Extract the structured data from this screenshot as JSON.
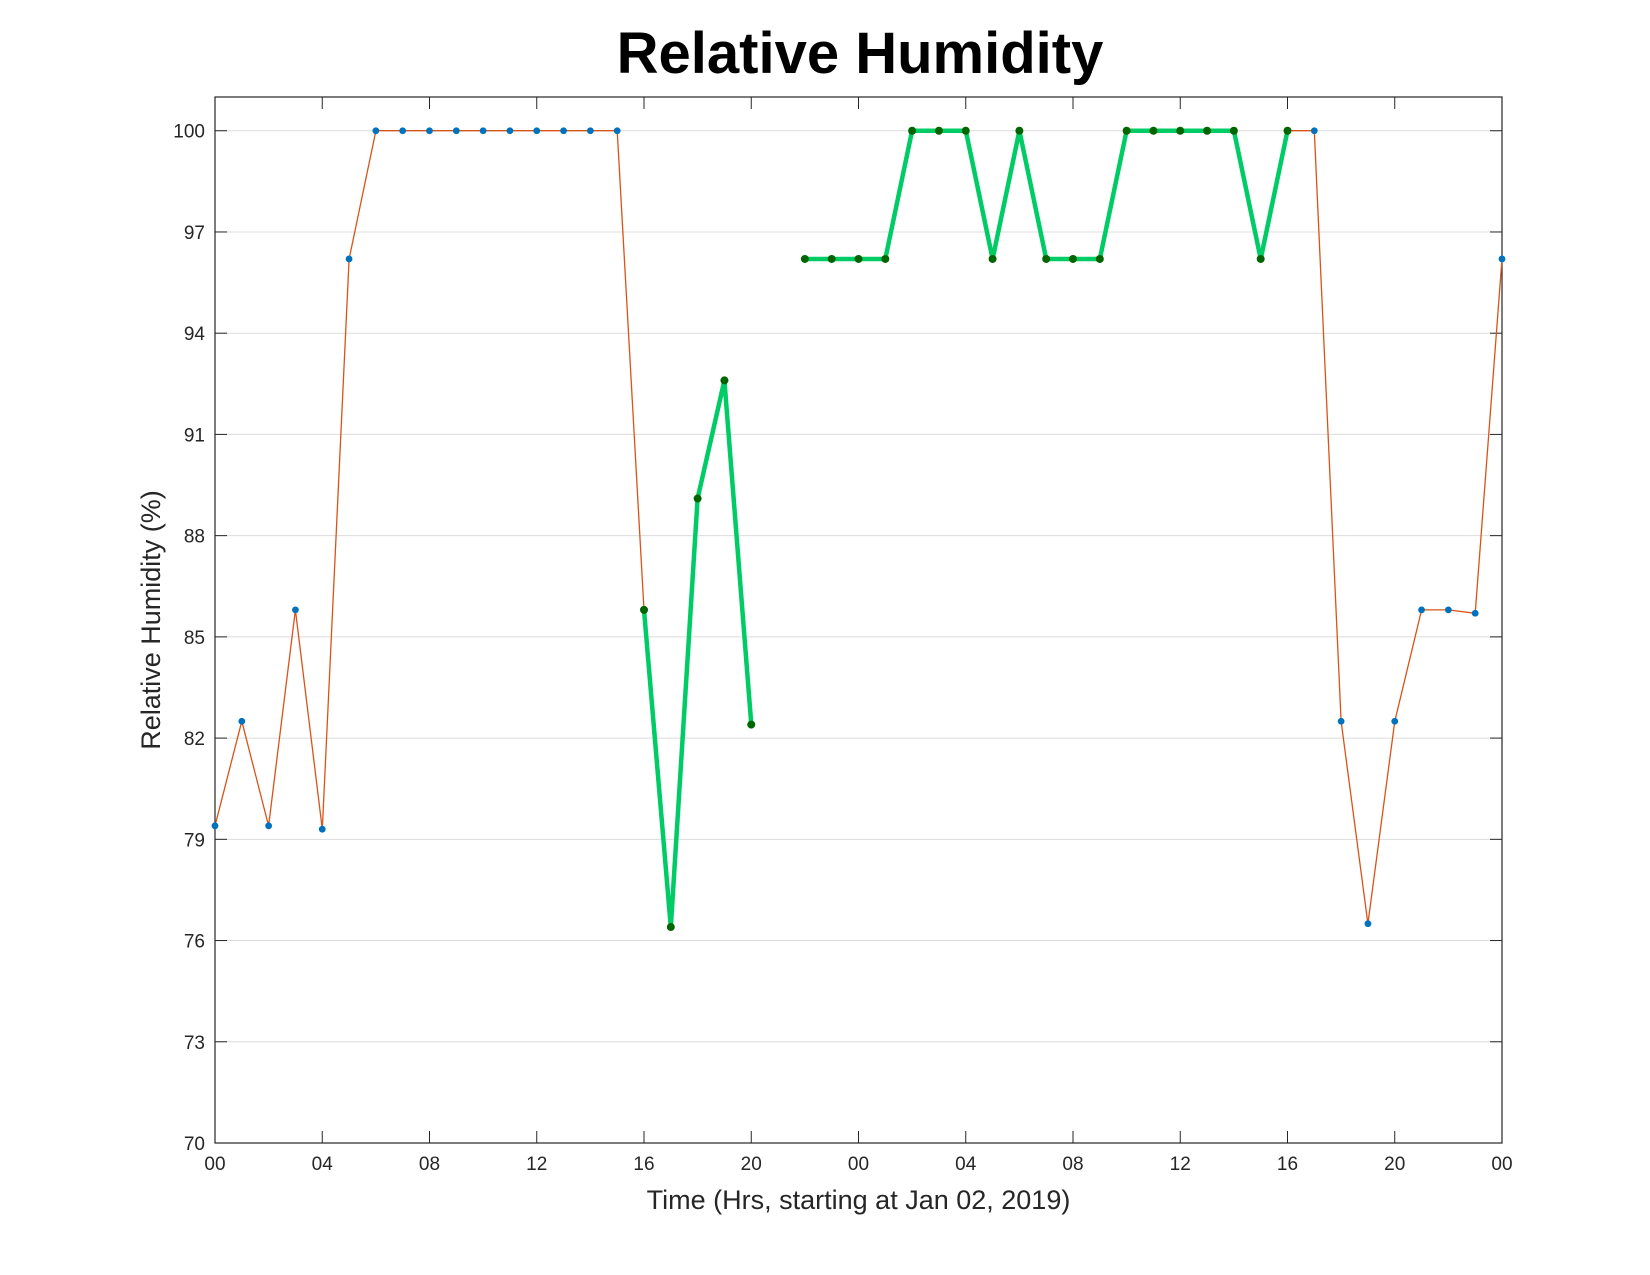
{
  "chart_data": {
    "type": "line",
    "title": "Relative Humidity",
    "xlabel": "Time (Hrs, starting at Jan 02, 2019)",
    "ylabel": "Relative Humidity (%)",
    "ylim": [
      70,
      101
    ],
    "xlim": [
      0,
      48
    ],
    "yticks": [
      70,
      73,
      76,
      79,
      82,
      85,
      88,
      91,
      94,
      97,
      100
    ],
    "xticks": [
      0,
      4,
      8,
      12,
      16,
      20,
      24,
      28,
      32,
      36,
      40,
      44,
      48
    ],
    "xtick_labels": [
      "00",
      "04",
      "08",
      "12",
      "16",
      "20",
      "00",
      "04",
      "08",
      "12",
      "16",
      "20",
      "00"
    ],
    "grid": true,
    "legend": "none",
    "colors": {
      "base_line": "#d95319",
      "base_marker": "#0072bd",
      "highlight_line": "#00cc66",
      "highlight_marker": "#006400",
      "grid": "#dcdcdc",
      "axis": "#262626"
    },
    "series": [
      {
        "x": [
          0,
          1,
          2,
          3,
          4,
          5,
          6,
          7,
          8,
          9,
          10,
          11,
          12,
          13,
          14,
          15,
          16,
          17,
          18,
          19,
          20,
          21,
          22,
          23,
          24,
          25,
          26,
          27,
          28,
          29,
          30,
          31,
          32,
          33,
          34,
          35,
          36,
          37,
          38,
          39,
          40,
          41,
          42,
          43,
          44,
          45,
          46,
          47,
          48
        ],
        "values": [
          79.4,
          82.5,
          79.4,
          85.8,
          79.3,
          96.2,
          100,
          100,
          100,
          100,
          100,
          100,
          100,
          100,
          100,
          100,
          85.8,
          76.4,
          89.1,
          92.6,
          82.4,
          null,
          96.2,
          96.2,
          96.2,
          96.2,
          100,
          100,
          100,
          96.2,
          100,
          96.2,
          96.2,
          96.2,
          100,
          100,
          100,
          100,
          100,
          96.2,
          100,
          100,
          82.5,
          76.5,
          82.5,
          85.8,
          85.8,
          85.7,
          96.2
        ]
      },
      {
        "x": [
          16,
          17,
          18,
          19,
          20,
          21,
          22,
          23,
          24,
          25,
          26,
          27,
          28,
          29,
          30,
          31,
          32,
          33,
          34,
          35,
          36,
          37,
          38,
          39,
          40
        ],
        "values": [
          85.8,
          76.4,
          89.1,
          92.6,
          82.4,
          null,
          96.2,
          96.2,
          96.2,
          96.2,
          100,
          100,
          100,
          96.2,
          100,
          96.2,
          96.2,
          96.2,
          100,
          100,
          100,
          100,
          100,
          96.2,
          100
        ]
      }
    ]
  }
}
